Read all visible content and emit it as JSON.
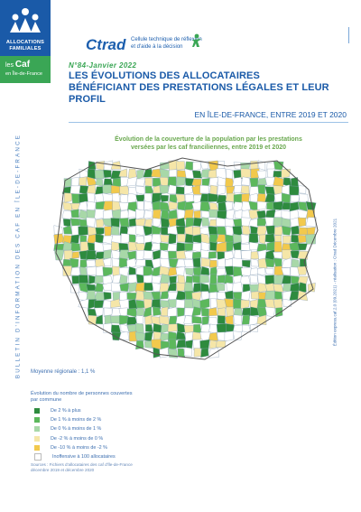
{
  "logo": {
    "line1": "ALLOCATIONS",
    "line2": "FAMILIALES",
    "caf_prefix": "les",
    "caf_name": "Caf",
    "region": "en Île-de-France"
  },
  "header": {
    "brand": "Ctrad",
    "brand_sub_1": "Cellule technique de réflexion",
    "brand_sub_2": "et d'aide à la décision",
    "issue": "N°84-Janvier 2022",
    "title_line1": "LES ÉVOLUTIONS DES ALLOCATAIRES",
    "title_line2": "BÉNÉFICIANT DES PRESTATIONS LÉGALES ET LEUR PROFIL",
    "subtitle": "EN ÎLE-DE-FRANCE, ENTRE 2019 ET 2020"
  },
  "side_text": "BULLETIN D'INFORMATION DES CAF EN ÎLE-DE-FRANCE",
  "map": {
    "caption_line1": "Évolution de la couverture de la population par les prestations",
    "caption_line2": "versées par les caf franciliennes, entre 2019 et 2020",
    "edition": "Édition express.caf.2.0 (09.2021) - réalisation : Ctrad Décembre 2021"
  },
  "moyenne": "Moyenne régionale : 1,1 %",
  "legend": {
    "title_line1": "Évolution du nombre de personnes couvertes",
    "title_line2": "par commune",
    "items": [
      {
        "label": "De 2 % à plus",
        "color": "#2e8b3e"
      },
      {
        "label": "De 1 % à moins de 2 %",
        "color": "#5cb85c"
      },
      {
        "label": "De 0 % à moins de 1 %",
        "color": "#a8d8a8"
      },
      {
        "label": "De -2 % à moins de 0 %",
        "color": "#f5e6a8"
      },
      {
        "label": "De -10 % à moins de -2 %",
        "color": "#f2c94c"
      },
      {
        "label": "Inoffensive à 100 allocataires",
        "color": "#ffffff"
      }
    ]
  },
  "sources": {
    "line1": "Sources : Fichiers d'allocataires des caf d'Île-de-France",
    "line2": "décembre 2019 et décembre 2020"
  },
  "palette": [
    "#2e8b3e",
    "#5cb85c",
    "#a8d8a8",
    "#f5e6a8",
    "#f2c94c",
    "#ffffff"
  ]
}
